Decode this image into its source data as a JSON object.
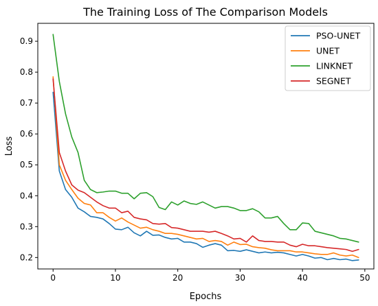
{
  "chart_data": {
    "type": "line",
    "title": "The Training Loss of The Comparison Models",
    "xlabel": "Epochs",
    "ylabel": "Loss",
    "xlim": [
      -2.45,
      51.45
    ],
    "ylim": [
      0.163,
      0.958
    ],
    "xticks": [
      0,
      10,
      20,
      30,
      40,
      50
    ],
    "yticks": [
      0.2,
      0.3,
      0.4,
      0.5,
      0.6,
      0.7,
      0.8,
      0.9
    ],
    "xtick_labels": [
      "0",
      "10",
      "20",
      "30",
      "40",
      "50"
    ],
    "ytick_labels": [
      "0.2",
      "0.3",
      "0.4",
      "0.5",
      "0.6",
      "0.7",
      "0.8",
      "0.9"
    ],
    "grid": false,
    "legend_position": "top-right",
    "x": [
      0,
      1,
      2,
      3,
      4,
      5,
      6,
      7,
      8,
      9,
      10,
      11,
      12,
      13,
      14,
      15,
      16,
      17,
      18,
      19,
      20,
      21,
      22,
      23,
      24,
      25,
      26,
      27,
      28,
      29,
      30,
      31,
      32,
      33,
      34,
      35,
      36,
      37,
      38,
      39,
      40,
      41,
      42,
      43,
      44,
      45,
      46,
      47,
      48,
      49
    ],
    "series": [
      {
        "name": "PSO-UNET",
        "color": "#1f77b4",
        "values": [
          0.735,
          0.48,
          0.42,
          0.395,
          0.36,
          0.348,
          0.333,
          0.33,
          0.325,
          0.31,
          0.292,
          0.29,
          0.298,
          0.28,
          0.27,
          0.285,
          0.272,
          0.273,
          0.265,
          0.26,
          0.262,
          0.25,
          0.25,
          0.245,
          0.233,
          0.24,
          0.245,
          0.24,
          0.222,
          0.223,
          0.22,
          0.225,
          0.22,
          0.215,
          0.218,
          0.215,
          0.217,
          0.215,
          0.21,
          0.205,
          0.21,
          0.205,
          0.198,
          0.2,
          0.193,
          0.197,
          0.193,
          0.195,
          0.19,
          0.192
        ]
      },
      {
        "name": "UNET",
        "color": "#ff7f0e",
        "values": [
          0.785,
          0.5,
          0.45,
          0.42,
          0.392,
          0.375,
          0.37,
          0.345,
          0.345,
          0.33,
          0.318,
          0.328,
          0.315,
          0.305,
          0.295,
          0.298,
          0.29,
          0.285,
          0.278,
          0.278,
          0.275,
          0.27,
          0.265,
          0.26,
          0.262,
          0.252,
          0.255,
          0.252,
          0.24,
          0.25,
          0.242,
          0.243,
          0.235,
          0.232,
          0.23,
          0.225,
          0.222,
          0.222,
          0.222,
          0.218,
          0.218,
          0.215,
          0.212,
          0.21,
          0.21,
          0.215,
          0.208,
          0.205,
          0.208,
          0.2
        ]
      },
      {
        "name": "LINKNET",
        "color": "#2ca02c",
        "values": [
          0.922,
          0.77,
          0.665,
          0.59,
          0.54,
          0.45,
          0.42,
          0.41,
          0.412,
          0.415,
          0.415,
          0.408,
          0.408,
          0.39,
          0.408,
          0.41,
          0.397,
          0.362,
          0.355,
          0.38,
          0.37,
          0.383,
          0.375,
          0.372,
          0.38,
          0.37,
          0.36,
          0.365,
          0.365,
          0.36,
          0.352,
          0.352,
          0.358,
          0.348,
          0.328,
          0.328,
          0.333,
          0.31,
          0.29,
          0.29,
          0.312,
          0.31,
          0.285,
          0.28,
          0.275,
          0.27,
          0.262,
          0.26,
          0.255,
          0.25
        ]
      },
      {
        "name": "SEGNET",
        "color": "#d62728",
        "values": [
          0.778,
          0.54,
          0.48,
          0.435,
          0.418,
          0.41,
          0.395,
          0.38,
          0.368,
          0.36,
          0.36,
          0.345,
          0.35,
          0.33,
          0.325,
          0.322,
          0.31,
          0.308,
          0.31,
          0.297,
          0.295,
          0.29,
          0.285,
          0.285,
          0.285,
          0.282,
          0.285,
          0.278,
          0.27,
          0.26,
          0.262,
          0.25,
          0.27,
          0.255,
          0.252,
          0.252,
          0.25,
          0.25,
          0.24,
          0.235,
          0.243,
          0.238,
          0.238,
          0.235,
          0.232,
          0.23,
          0.228,
          0.226,
          0.22,
          0.226
        ]
      }
    ]
  }
}
